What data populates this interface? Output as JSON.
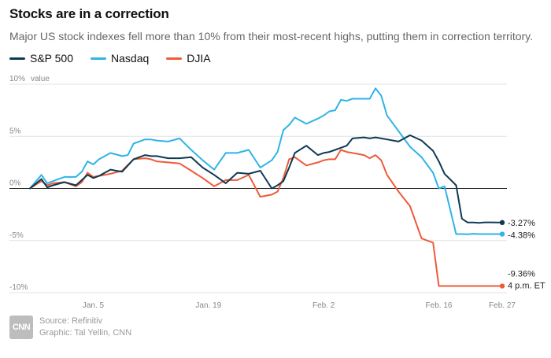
{
  "title": "Stocks are in a correction",
  "subtitle": "Major US stock indexes fell more than 10% from their most-recent highs, putting them in correction territory.",
  "legend": [
    {
      "name": "S&P 500",
      "color": "#0e3a53"
    },
    {
      "name": "Nasdaq",
      "color": "#2fb4e6"
    },
    {
      "name": "DJIA",
      "color": "#ef5a3b"
    }
  ],
  "chart_data": {
    "type": "line",
    "title": "Stocks are in a correction",
    "xlabel": "",
    "ylabel": "value",
    "x_index_range": [
      0,
      41
    ],
    "ylim": [
      -10,
      10
    ],
    "y_ticks": [
      {
        "value": 10,
        "label": "10%"
      },
      {
        "value": 5,
        "label": "5%"
      },
      {
        "value": 0,
        "label": "0%"
      },
      {
        "value": -5,
        "label": "-5%"
      },
      {
        "value": -10,
        "label": "-10%"
      }
    ],
    "x_ticks": [
      {
        "index": 5.5,
        "label": "Jan. 5"
      },
      {
        "index": 15.5,
        "label": "Jan. 19"
      },
      {
        "index": 25.5,
        "label": "Feb. 2"
      },
      {
        "index": 35.5,
        "label": "Feb. 16"
      },
      {
        "index": 41,
        "label": "Feb. 27"
      }
    ],
    "series": [
      {
        "name": "S&P 500",
        "color": "#0e3a53",
        "x": [
          0,
          1,
          1.5,
          2,
          3,
          4,
          4.5,
          5,
          5.5,
          6,
          7,
          8,
          9,
          10,
          10.5,
          11,
          12,
          13,
          14,
          15,
          16,
          17,
          18,
          19,
          20,
          21,
          21.5,
          22,
          22.5,
          23,
          24,
          25,
          25.5,
          26,
          26.5,
          27,
          27.5,
          28,
          29,
          29.5,
          30,
          30.5,
          31,
          32,
          33,
          34,
          35,
          35.5,
          36,
          37,
          37.5,
          38,
          38.5,
          39,
          39.5,
          40,
          40.5,
          41
        ],
        "values": [
          0,
          0.9,
          0.1,
          0.3,
          0.6,
          0.3,
          0.8,
          1.3,
          1.0,
          1.2,
          1.8,
          1.6,
          2.8,
          3.2,
          3.1,
          3.1,
          2.9,
          2.9,
          3.0,
          2.0,
          1.3,
          0.5,
          1.5,
          1.4,
          1.7,
          0,
          0.3,
          0.7,
          2.0,
          3.4,
          4.1,
          3.2,
          3.4,
          3.5,
          3.7,
          3.9,
          4.1,
          4.8,
          4.9,
          4.8,
          4.9,
          4.8,
          4.7,
          4.5,
          5.1,
          4.6,
          3.6,
          2.6,
          1.4,
          0.3,
          -2.9,
          -3.27,
          -3.27,
          -3.3,
          -3.25,
          -3.25,
          -3.27,
          -3.27
        ],
        "end_label": "-3.27%"
      },
      {
        "name": "Nasdaq",
        "color": "#2fb4e6",
        "x": [
          0,
          1,
          1.5,
          2,
          3,
          4,
          4.5,
          5,
          5.5,
          6,
          7,
          8,
          8.5,
          9,
          10,
          10.5,
          11,
          12,
          13,
          14,
          15,
          16,
          17,
          18,
          19,
          20,
          21,
          21.5,
          22,
          22.5,
          23,
          24,
          25,
          25.5,
          26,
          26.5,
          27,
          27.5,
          28,
          29,
          29.5,
          30,
          30.5,
          31,
          32,
          33,
          34,
          35,
          35.5,
          36,
          37,
          37.5,
          38,
          38.5,
          39,
          39.5,
          40,
          40.5,
          41
        ],
        "values": [
          0,
          1.3,
          0.5,
          0.7,
          1.1,
          1.1,
          1.6,
          2.6,
          2.3,
          2.8,
          3.4,
          3.1,
          3.2,
          4.3,
          4.7,
          4.7,
          4.6,
          4.5,
          4.8,
          3.7,
          2.7,
          1.8,
          3.4,
          3.4,
          3.7,
          2.0,
          2.7,
          3.5,
          5.6,
          6.1,
          6.8,
          6.2,
          6.7,
          7.0,
          7.4,
          7.5,
          8.5,
          8.4,
          8.6,
          8.6,
          8.6,
          9.6,
          8.9,
          7.0,
          5.5,
          4.0,
          3.0,
          1.5,
          0.0,
          0.2,
          -4.38,
          -4.38,
          -4.4,
          -4.35,
          -4.38,
          -4.38,
          -4.38,
          -4.38,
          -4.38
        ],
        "end_label": "-4.38%"
      },
      {
        "name": "DJIA",
        "color": "#ef5a3b",
        "x": [
          0,
          1,
          1.5,
          2,
          3,
          4,
          4.5,
          5,
          5.5,
          6,
          7,
          8,
          9,
          10,
          10.5,
          11,
          12,
          13,
          14,
          15,
          16,
          17,
          18,
          19,
          20,
          21,
          21.5,
          22,
          22.5,
          23,
          24,
          25,
          25.5,
          26,
          26.5,
          27,
          27.5,
          28,
          29,
          29.5,
          30,
          30.5,
          31,
          32,
          33,
          34,
          35,
          35.5,
          36,
          37,
          37.5,
          38,
          38.5,
          39,
          39.5,
          40,
          40.5,
          41
        ],
        "values": [
          0,
          0.7,
          0.3,
          0.5,
          0.6,
          0.2,
          0.6,
          1.5,
          1.1,
          1.2,
          1.4,
          1.7,
          2.8,
          2.9,
          2.8,
          2.6,
          2.5,
          2.4,
          1.7,
          1.0,
          0.2,
          0.8,
          0.8,
          1.3,
          -0.8,
          -0.6,
          -0.3,
          1.0,
          2.8,
          3.0,
          2.2,
          2.5,
          2.7,
          2.8,
          2.8,
          3.7,
          3.5,
          3.4,
          3.2,
          2.9,
          3.2,
          2.7,
          1.3,
          -0.3,
          -1.7,
          -4.8,
          -5.2,
          -9.36,
          -9.36,
          -9.36,
          -9.36,
          -9.36,
          -9.36,
          -9.36,
          -9.36,
          -9.36,
          -9.36,
          -9.36
        ],
        "end_label_lines": [
          "-9.36%",
          "4 p.m. ET"
        ]
      }
    ]
  },
  "credits": {
    "logo": "CNN",
    "source": "Source: Refinitiv",
    "graphic": "Graphic: Tal Yellin, CNN"
  }
}
